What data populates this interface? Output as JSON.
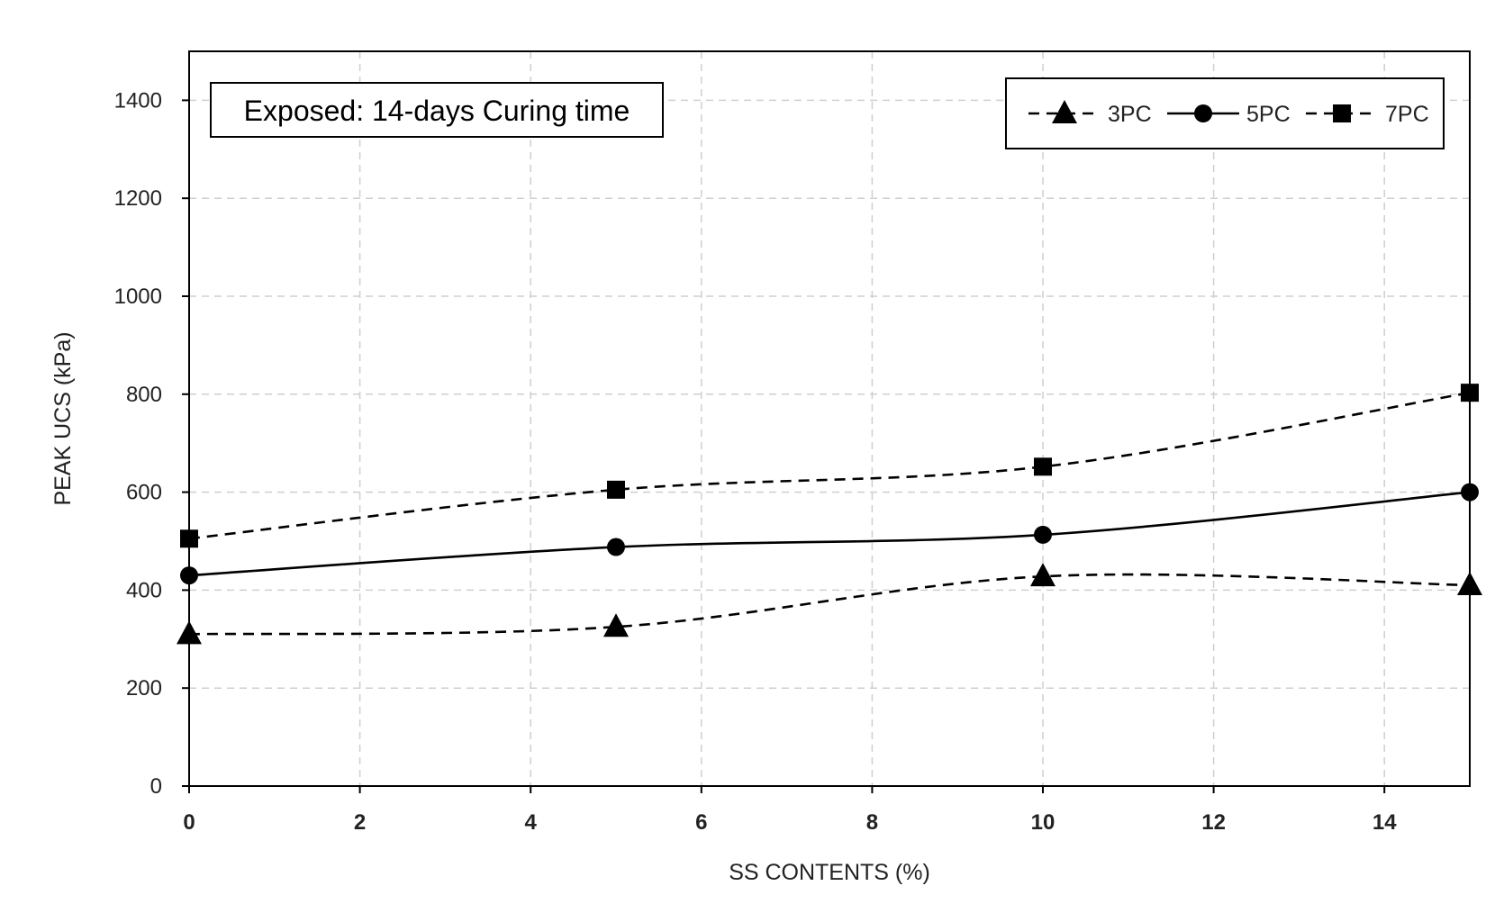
{
  "chart_data": {
    "type": "line",
    "title": "",
    "annotation": "Exposed: 14-days Curing time",
    "xlabel": "SS CONTENTS (%)",
    "ylabel": "PEAK UCS (kPa)",
    "xlim": [
      0,
      15
    ],
    "ylim": [
      0,
      1500
    ],
    "xticks": [
      0,
      2,
      4,
      6,
      8,
      10,
      12,
      14
    ],
    "yticks": [
      0,
      200,
      400,
      600,
      800,
      1000,
      1200,
      1400
    ],
    "grid": true,
    "legend_position": "top-right",
    "x": [
      0,
      5,
      10,
      15
    ],
    "series": [
      {
        "name": "3PC",
        "values": [
          310,
          325,
          428,
          410
        ],
        "marker": "triangle",
        "line": "dashed",
        "color": "#000000"
      },
      {
        "name": "5PC",
        "values": [
          430,
          488,
          513,
          600
        ],
        "marker": "circle",
        "line": "solid",
        "color": "#000000"
      },
      {
        "name": "7PC",
        "values": [
          505,
          605,
          652,
          803
        ],
        "marker": "square",
        "line": "dashed",
        "color": "#000000"
      }
    ]
  }
}
